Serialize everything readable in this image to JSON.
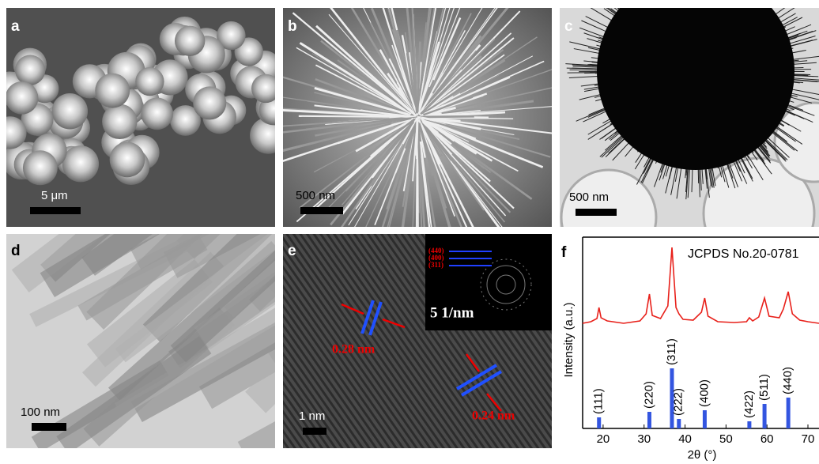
{
  "panels": [
    {
      "label": "a",
      "scale_bar": "5 μm"
    },
    {
      "label": "b",
      "scale_bar": "500 nm"
    },
    {
      "label": "c",
      "scale_bar": "500 nm"
    },
    {
      "label": "d",
      "scale_bar": "100 nm"
    },
    {
      "label": "e",
      "scale_bar": "1 nm",
      "annotations": [
        "0.28 nm",
        "0.24 nm"
      ],
      "inset": {
        "scale": "5 1/nm",
        "rings": [
          "(440)",
          "(400)",
          "(311)"
        ]
      }
    },
    {
      "label": "f",
      "chart": {
        "type": "stick",
        "legend": "JCPDS No.20-0781",
        "ylabel": "Intensity (a.u.)",
        "xlabel": "2θ (°)",
        "xlim": [
          15,
          72.7
        ],
        "xticks": [
          20,
          30,
          40,
          50,
          60,
          70
        ],
        "ylim": [
          0,
          242
        ],
        "reference": {
          "color": "#3355e0",
          "x": [
            19.0,
            31.3,
            36.8,
            38.5,
            44.8,
            55.7,
            59.4,
            65.2
          ],
          "values": [
            14,
            21,
            76,
            12,
            23,
            9,
            31,
            39
          ],
          "labels": [
            "(111)",
            "(220)",
            "(311)",
            "(222)",
            "(400)",
            "(422)",
            "(511)",
            "(440)"
          ]
        },
        "measured": {
          "color": "#e8201a",
          "x": [
            15,
            17,
            18.5,
            19,
            19.5,
            21,
            25,
            29,
            30.5,
            31.3,
            32,
            34,
            35.8,
            36.8,
            37.8,
            38.5,
            39.5,
            42,
            44,
            44.8,
            45.6,
            48,
            52,
            55,
            55.7,
            56.5,
            58,
            59.4,
            60.5,
            63,
            64,
            65.2,
            66.2,
            68,
            70,
            72.7
          ],
          "values": [
            133,
            135,
            139,
            153,
            140,
            136,
            133,
            136,
            145,
            170,
            143,
            139,
            155,
            229,
            153,
            145,
            138,
            137,
            147,
            165,
            142,
            135,
            134,
            135,
            140,
            136,
            141,
            165,
            142,
            140,
            151,
            173,
            145,
            137,
            135,
            133
          ]
        }
      }
    }
  ]
}
